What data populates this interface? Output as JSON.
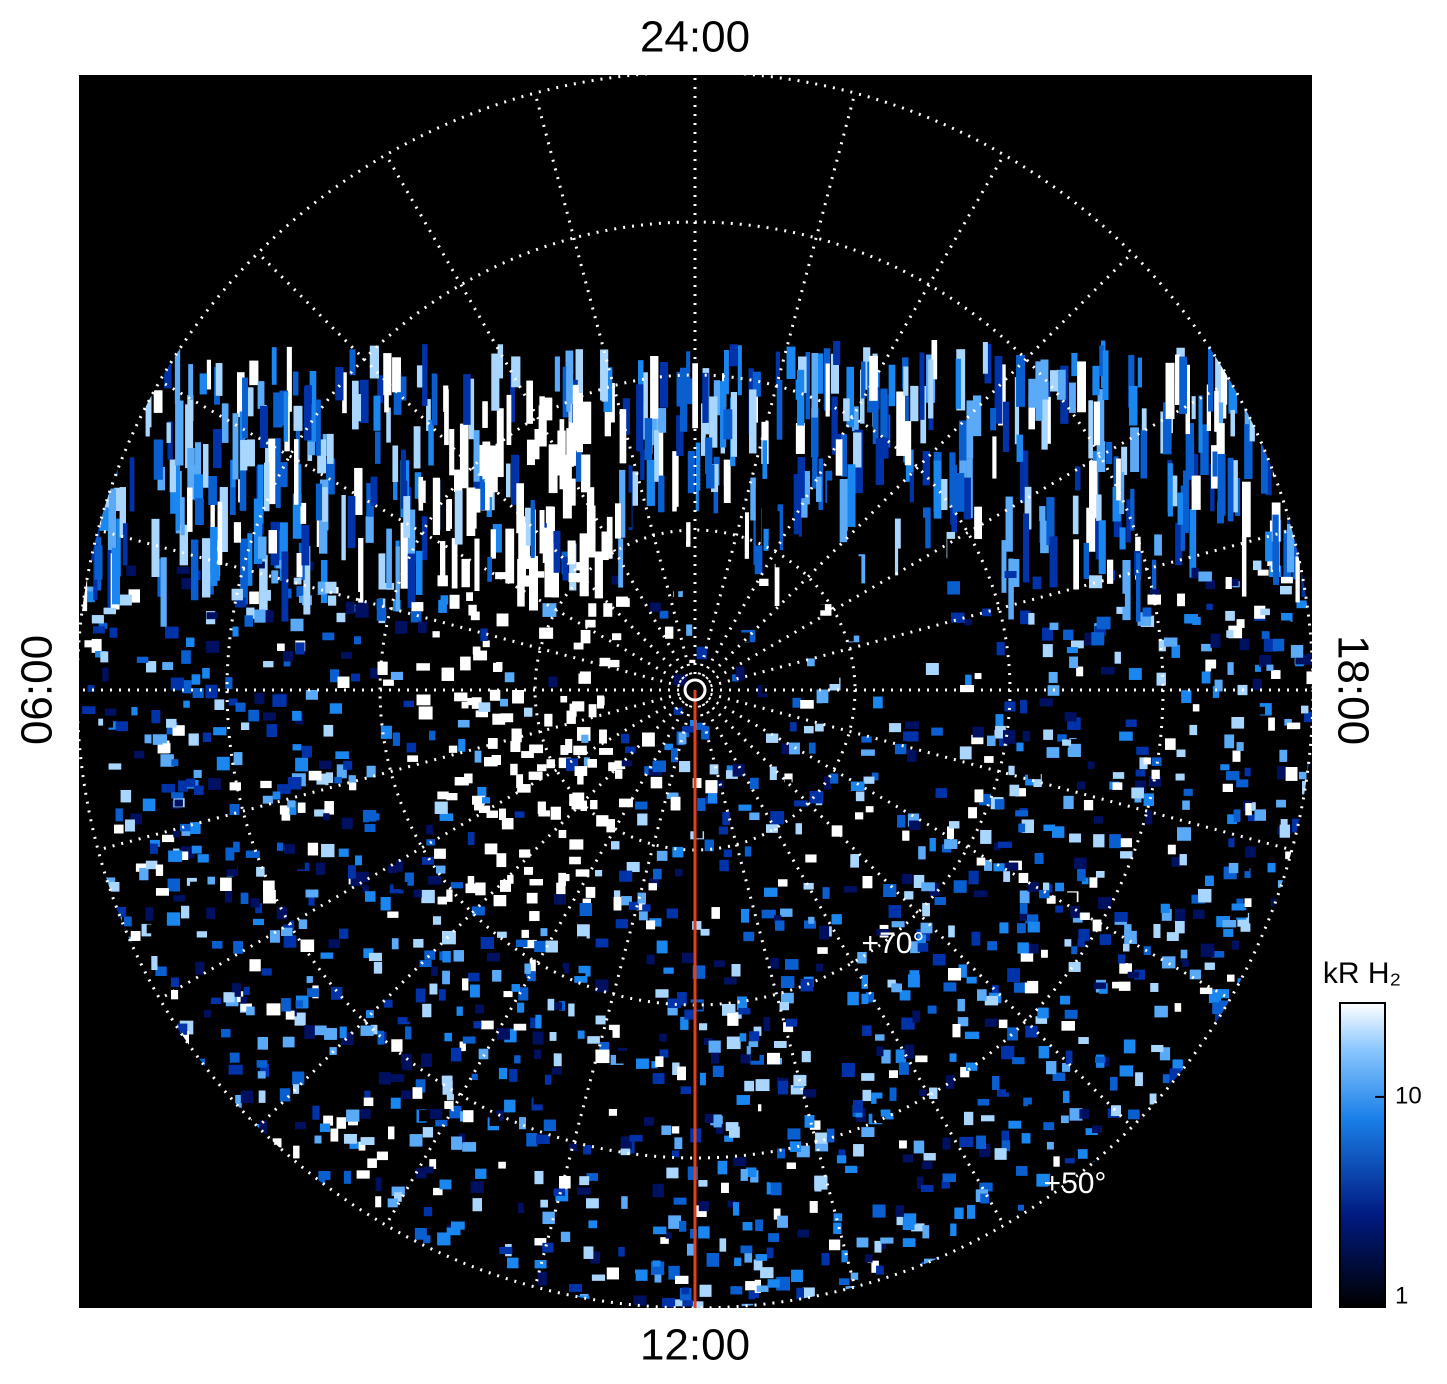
{
  "labels": {
    "top": "24:00",
    "bottom": "12:00",
    "left": "06:00",
    "right": "18:00"
  },
  "latitude_labels": [
    "+70°",
    "+50°"
  ],
  "colorbar": {
    "title": "kR H₂",
    "ticks": [
      1,
      10
    ],
    "range": [
      1,
      28
    ],
    "log": true
  }
}
